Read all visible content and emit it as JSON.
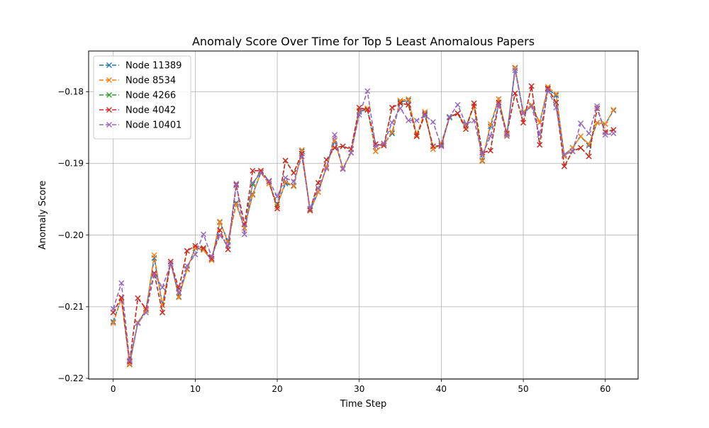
{
  "chart_data": {
    "type": "line",
    "title": "Anomaly Score Over Time for Top 5 Least Anomalous Papers",
    "xlabel": "Time Step",
    "ylabel": "Anomaly Score",
    "xlim": [
      -3,
      64
    ],
    "ylim": [
      -0.2201,
      -0.1743
    ],
    "x_ticks": [
      0,
      10,
      20,
      30,
      40,
      50,
      60
    ],
    "y_ticks": [
      -0.22,
      -0.21,
      -0.2,
      -0.19,
      -0.18
    ],
    "y_tick_labels": [
      "−0.22",
      "−0.21",
      "−0.20",
      "−0.19",
      "−0.18"
    ],
    "grid": true,
    "legend_position": "top-left",
    "marker": "x",
    "line_style": "dashed",
    "x": [
      0,
      1,
      2,
      3,
      4,
      5,
      6,
      7,
      8,
      9,
      10,
      11,
      12,
      13,
      14,
      15,
      16,
      17,
      18,
      19,
      20,
      21,
      22,
      23,
      24,
      25,
      26,
      27,
      28,
      29,
      30,
      31,
      32,
      33,
      34,
      35,
      36,
      37,
      38,
      39,
      40,
      41,
      42,
      43,
      44,
      45,
      46,
      47,
      48,
      49,
      50,
      51,
      52,
      53,
      54,
      55,
      56,
      57,
      58,
      59,
      60,
      61
    ],
    "series": [
      {
        "name": "Node 11389",
        "color": "#1f77b4",
        "values": [
          -0.2121,
          -0.2088,
          -0.218,
          -0.2122,
          -0.2105,
          -0.2032,
          -0.2098,
          -0.2037,
          -0.2086,
          -0.2047,
          -0.2018,
          -0.202,
          -0.2035,
          -0.1982,
          -0.2008,
          -0.1955,
          -0.199,
          -0.1943,
          -0.1913,
          -0.1928,
          -0.1957,
          -0.1928,
          -0.1931,
          -0.1883,
          -0.1966,
          -0.194,
          -0.1905,
          -0.1868,
          -0.1907,
          -0.1885,
          -0.1828,
          -0.1824,
          -0.1883,
          -0.1873,
          -0.1858,
          -0.1814,
          -0.1812,
          -0.1862,
          -0.183,
          -0.188,
          -0.1873,
          -0.1836,
          -0.183,
          -0.1848,
          -0.182,
          -0.1896,
          -0.1848,
          -0.181,
          -0.186,
          -0.1767,
          -0.183,
          -0.182,
          -0.1843,
          -0.1796,
          -0.1805,
          -0.1888,
          -0.1878,
          -0.1862,
          -0.1875,
          -0.1843,
          -0.1845,
          -0.1826
        ]
      },
      {
        "name": "Node 8534",
        "color": "#ff7f0e",
        "values": [
          -0.2123,
          -0.2088,
          -0.2181,
          -0.2122,
          -0.2105,
          -0.2028,
          -0.2098,
          -0.2037,
          -0.2087,
          -0.2048,
          -0.2018,
          -0.2021,
          -0.2035,
          -0.1981,
          -0.201,
          -0.1957,
          -0.199,
          -0.1944,
          -0.1912,
          -0.1928,
          -0.196,
          -0.1925,
          -0.1932,
          -0.1881,
          -0.1966,
          -0.194,
          -0.1905,
          -0.1868,
          -0.1907,
          -0.1885,
          -0.1826,
          -0.1823,
          -0.1883,
          -0.1873,
          -0.1856,
          -0.1812,
          -0.181,
          -0.186,
          -0.1828,
          -0.188,
          -0.1872,
          -0.1835,
          -0.183,
          -0.1848,
          -0.182,
          -0.1897,
          -0.1845,
          -0.181,
          -0.186,
          -0.1766,
          -0.1828,
          -0.1818,
          -0.1843,
          -0.1793,
          -0.1803,
          -0.189,
          -0.1878,
          -0.1862,
          -0.1873,
          -0.1843,
          -0.1845,
          -0.1825
        ]
      },
      {
        "name": "Node 4266",
        "color": "#2ca02c",
        "values": [
          -0.2108,
          -0.2087,
          -0.2177,
          -0.2088,
          -0.2103,
          -0.2053,
          -0.2108,
          -0.2037,
          -0.2075,
          -0.2022,
          -0.2015,
          -0.2018,
          -0.2033,
          -0.1993,
          -0.202,
          -0.193,
          -0.1985,
          -0.1929,
          -0.191,
          -0.1925,
          -0.1963,
          -0.1896,
          -0.1913,
          -0.1886,
          -0.1965,
          -0.1927,
          -0.1895,
          -0.1878,
          -0.1876,
          -0.188,
          -0.1822,
          -0.1825,
          -0.1873,
          -0.1875,
          -0.1822,
          -0.1816,
          -0.1818,
          -0.1862,
          -0.1832,
          -0.1876,
          -0.1875,
          -0.1835,
          -0.183,
          -0.1852,
          -0.1816,
          -0.1885,
          -0.1882,
          -0.1815,
          -0.1858,
          -0.1802,
          -0.1843,
          -0.1792,
          -0.1874,
          -0.1795,
          -0.1815,
          -0.1904,
          -0.1883,
          -0.1878,
          -0.189,
          -0.1823,
          -0.1856,
          -0.1853
        ]
      },
      {
        "name": "Node 4042",
        "color": "#d62728",
        "values": [
          -0.2108,
          -0.2087,
          -0.2177,
          -0.2088,
          -0.2103,
          -0.2053,
          -0.2108,
          -0.2037,
          -0.2075,
          -0.2022,
          -0.2015,
          -0.2018,
          -0.2033,
          -0.1993,
          -0.202,
          -0.193,
          -0.1985,
          -0.191,
          -0.191,
          -0.1925,
          -0.1963,
          -0.1896,
          -0.1913,
          -0.1886,
          -0.1965,
          -0.1927,
          -0.1895,
          -0.1878,
          -0.1876,
          -0.188,
          -0.1822,
          -0.1825,
          -0.1873,
          -0.1875,
          -0.1822,
          -0.1816,
          -0.1818,
          -0.1862,
          -0.1832,
          -0.1876,
          -0.1875,
          -0.1835,
          -0.183,
          -0.1852,
          -0.1816,
          -0.1885,
          -0.1882,
          -0.1815,
          -0.1858,
          -0.1802,
          -0.1843,
          -0.1792,
          -0.1874,
          -0.1795,
          -0.1815,
          -0.1904,
          -0.1883,
          -0.1878,
          -0.189,
          -0.1823,
          -0.1856,
          -0.1853
        ]
      },
      {
        "name": "Node 10401",
        "color": "#9467bd",
        "values": [
          -0.2103,
          -0.2067,
          -0.2175,
          -0.2123,
          -0.2108,
          -0.2055,
          -0.2073,
          -0.204,
          -0.208,
          -0.2043,
          -0.2027,
          -0.1999,
          -0.203,
          -0.2,
          -0.2015,
          -0.1928,
          -0.1999,
          -0.1927,
          -0.1913,
          -0.1924,
          -0.1946,
          -0.192,
          -0.1925,
          -0.189,
          -0.1963,
          -0.1935,
          -0.1907,
          -0.186,
          -0.1908,
          -0.1885,
          -0.1832,
          -0.1799,
          -0.1876,
          -0.1872,
          -0.1843,
          -0.1823,
          -0.184,
          -0.184,
          -0.1833,
          -0.1842,
          -0.1876,
          -0.1835,
          -0.1818,
          -0.1845,
          -0.184,
          -0.1888,
          -0.1862,
          -0.1818,
          -0.1862,
          -0.177,
          -0.183,
          -0.182,
          -0.186,
          -0.1797,
          -0.1822,
          -0.1888,
          -0.1883,
          -0.1844,
          -0.1858,
          -0.182,
          -0.186,
          -0.1858
        ]
      }
    ]
  }
}
